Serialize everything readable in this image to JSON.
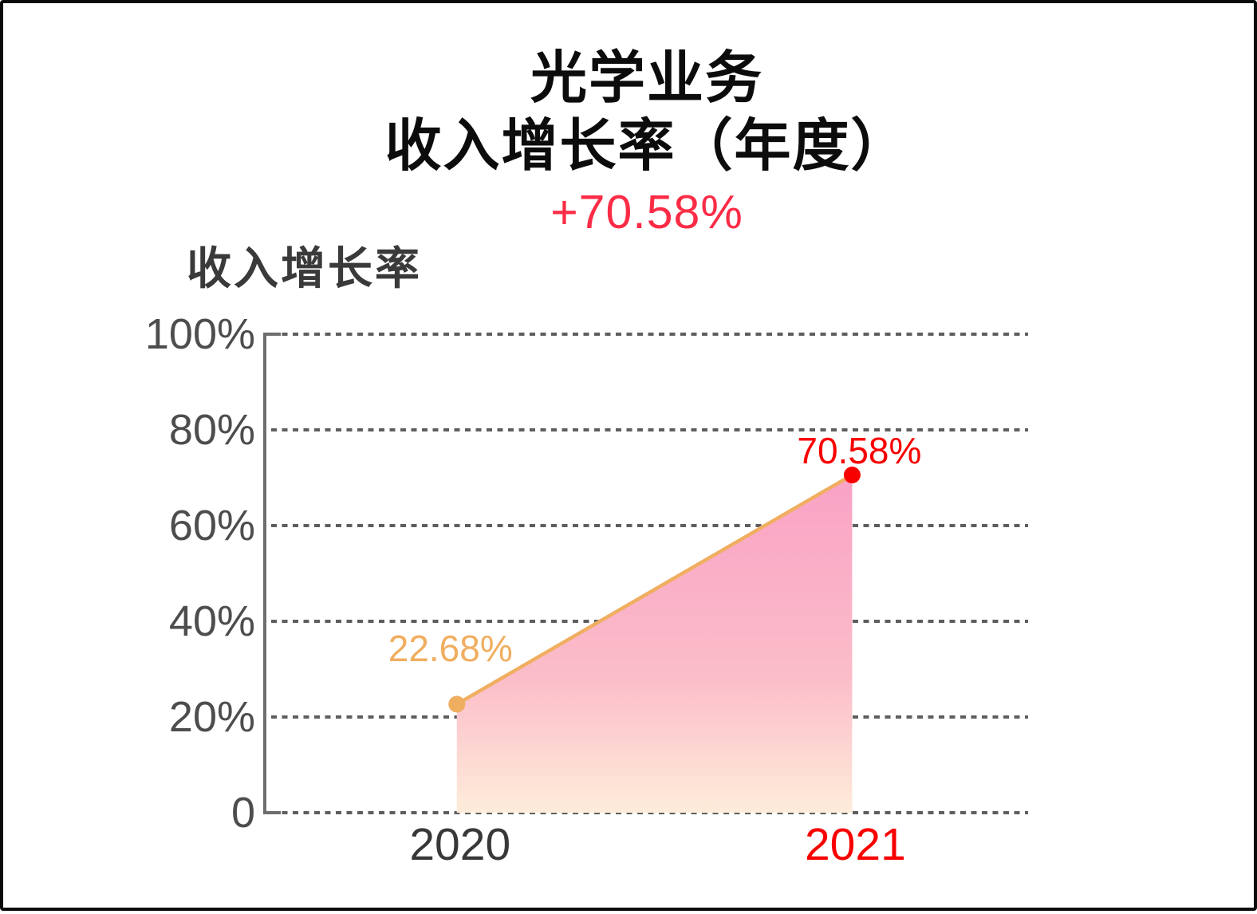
{
  "header": {
    "title_line1": "光学业务",
    "title_line2": "收入增长率（年度）",
    "change_label": "+70.58%"
  },
  "chart_data": {
    "type": "area",
    "title": "光学业务 收入增长率（年度）",
    "categories": [
      "2020",
      "2021"
    ],
    "series": [
      {
        "name": "收入增长率",
        "values": [
          22.68,
          70.58
        ]
      }
    ],
    "point_labels": [
      "22.68%",
      "70.58%"
    ],
    "ylabel": "收入增长率",
    "xlabel": "",
    "ylim": [
      0,
      100
    ],
    "yticks": [
      0,
      20,
      40,
      60,
      80,
      100
    ],
    "ytick_labels": [
      "0",
      "20%",
      "40%",
      "60%",
      "80%",
      "100%"
    ],
    "grid": "horizontal-dashed",
    "legend_position": "none"
  },
  "colors": {
    "title": "#0c0c0c",
    "subtitle_red": "#fb2c46",
    "highlight_red": "#f80000",
    "line_orange": "#f0ae60",
    "area_top": "#f9a2c5",
    "area_mid": "#fbbdc9",
    "area_bottom": "#feecda",
    "grid": "#5e5e5e",
    "axis": "#6e6e6e",
    "ytick_text": "#4d4d4d",
    "ylabel_text": "#3a3a3a",
    "point_colors": [
      "#f0ae60",
      "#f80000"
    ],
    "xtick_colors": [
      "#383838",
      "#f80000"
    ]
  }
}
